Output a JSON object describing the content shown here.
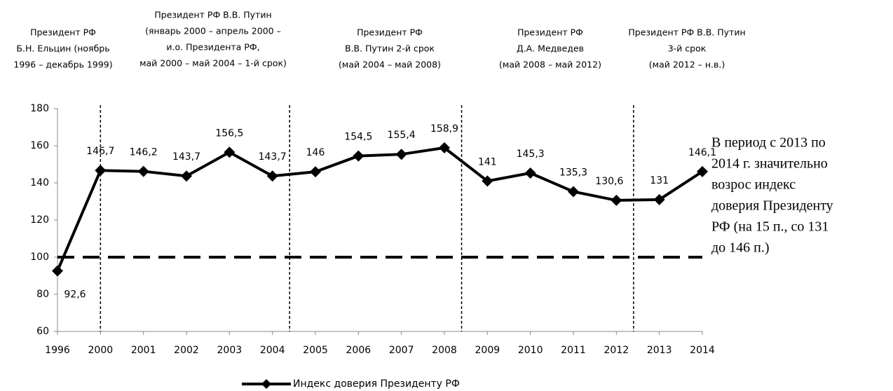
{
  "chart_data": {
    "type": "line",
    "categories": [
      "1996",
      "2000",
      "2001",
      "2002",
      "2003",
      "2004",
      "2005",
      "2006",
      "2007",
      "2008",
      "2009",
      "2010",
      "2011",
      "2012",
      "2013",
      "2014"
    ],
    "series": [
      {
        "name": "Индекс доверия  Президенту РФ",
        "color": "#000000",
        "values": [
          92.6,
          146.7,
          146.2,
          143.7,
          156.5,
          143.7,
          146,
          154.5,
          155.4,
          158.9,
          141,
          145.3,
          135.3,
          130.6,
          131,
          146.1
        ],
        "value_labels": [
          "92,6",
          "146,7",
          "146,2",
          "143,7",
          "156,5",
          "143,7",
          "146",
          "154,5",
          "155,4",
          "158,9",
          "141",
          "145,3",
          "135,3",
          "130,6",
          "131",
          "146,1"
        ]
      }
    ],
    "ylim": [
      60,
      180
    ],
    "yticks": [
      60,
      80,
      100,
      120,
      140,
      160,
      180
    ],
    "reference_line": 100,
    "grid": false,
    "legend": "bottom",
    "periods": [
      {
        "lines": [
          "Президент РФ",
          "Б.Н. Ельцин (ноябрь",
          "1996 – декабрь 1999)"
        ]
      },
      {
        "lines": [
          "Президент РФ В.В. Путин",
          "(январь 2000 – апрель 2000 –",
          "и.о. Президента РФ,",
          "май 2000 – май 2004 – 1-й срок)"
        ]
      },
      {
        "lines": [
          "Президент РФ",
          "В.В. Путин 2-й срок",
          "(май 2004 –  май 2008)"
        ]
      },
      {
        "lines": [
          "Президент РФ",
          "Д.А. Медведев",
          "(май 2008 –  май 2012)"
        ]
      },
      {
        "lines": [
          "Президент РФ В.В. Путин",
          "3-й срок",
          "(май 2012 – н.в.)"
        ]
      }
    ],
    "note": [
      "В период с 2013 по",
      "2014 г. значительно",
      "возрос индекс",
      "доверия Президенту",
      "РФ (на 15 п., со 131",
      "до 146 п.)"
    ]
  }
}
